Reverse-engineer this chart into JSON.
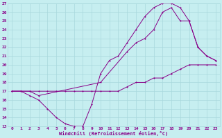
{
  "xlabel": "Windchill (Refroidissement éolien,°C)",
  "background_color": "#c6eef0",
  "grid_color": "#a8d8dc",
  "line_color": "#880088",
  "xlim": [
    -0.5,
    23.5
  ],
  "ylim": [
    13,
    27
  ],
  "xticks": [
    0,
    1,
    2,
    3,
    4,
    5,
    6,
    7,
    8,
    9,
    10,
    11,
    12,
    13,
    14,
    15,
    16,
    17,
    18,
    19,
    20,
    21,
    22,
    23
  ],
  "yticks": [
    13,
    14,
    15,
    16,
    17,
    18,
    19,
    20,
    21,
    22,
    23,
    24,
    25,
    26,
    27
  ],
  "line1_x": [
    0,
    1,
    2,
    3,
    4,
    5,
    6,
    7,
    8,
    9,
    10,
    11,
    12,
    13,
    14,
    15,
    16,
    17,
    18,
    19,
    20,
    21,
    22,
    23
  ],
  "line1_y": [
    17,
    17,
    17,
    17,
    17,
    17,
    17,
    17,
    17,
    17,
    17,
    17,
    17,
    17.5,
    18,
    18,
    18.5,
    18.5,
    19,
    19.5,
    20,
    20,
    20,
    20
  ],
  "line2_x": [
    0,
    1,
    2,
    3,
    4,
    5,
    6,
    7,
    8,
    9,
    10,
    11,
    12,
    13,
    14,
    15,
    16,
    17,
    18,
    19,
    20,
    21,
    22,
    23
  ],
  "line2_y": [
    17,
    17,
    16.5,
    16,
    15,
    14,
    13.3,
    13,
    13,
    15.5,
    19,
    20.5,
    21,
    22.5,
    24,
    25.5,
    26.5,
    27,
    27,
    26.5,
    25,
    22,
    21,
    20.5
  ],
  "line3_x": [
    0,
    2,
    3,
    10,
    13,
    14,
    15,
    16,
    17,
    18,
    19,
    20,
    21,
    22,
    23
  ],
  "line3_y": [
    17,
    17,
    16.5,
    18,
    21.5,
    22.5,
    23,
    24,
    26,
    26.5,
    25,
    25,
    22,
    21,
    20.5
  ]
}
